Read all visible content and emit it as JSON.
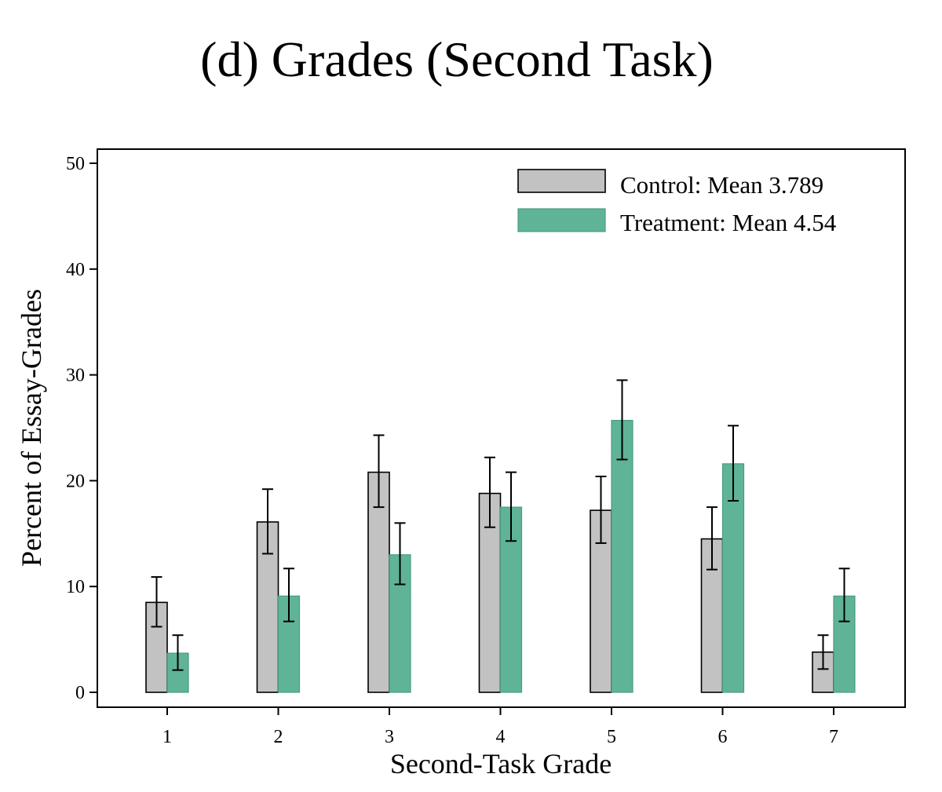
{
  "colors": {
    "control": "#c2c2c2",
    "treatment": "#5fb396",
    "treatment_edge": "#4a9e80",
    "axis": "#000000"
  },
  "chart_data": {
    "type": "bar",
    "title": "(d) Grades (Second Task)",
    "xlabel": "Second-Task Grade",
    "ylabel": "Percent of Essay-Grades",
    "categories": [
      "1",
      "2",
      "3",
      "4",
      "5",
      "6",
      "7"
    ],
    "yticks": [
      0,
      10,
      20,
      30,
      40,
      50
    ],
    "ylim": [
      -1.5,
      51.5
    ],
    "grid": false,
    "legend_position": "top-right",
    "series": [
      {
        "name": "Control: Mean 3.789",
        "values": [
          8.5,
          16.1,
          20.8,
          18.8,
          17.2,
          14.5,
          3.8
        ],
        "ci_low": [
          6.2,
          13.1,
          17.5,
          15.6,
          14.1,
          11.6,
          2.2
        ],
        "ci_high": [
          10.9,
          19.2,
          24.3,
          22.2,
          20.4,
          17.5,
          5.4
        ]
      },
      {
        "name": "Treatment: Mean 4.54",
        "values": [
          3.7,
          9.1,
          13.0,
          17.5,
          25.7,
          21.6,
          9.1
        ],
        "ci_low": [
          2.1,
          6.7,
          10.2,
          14.3,
          22.0,
          18.1,
          6.7
        ],
        "ci_high": [
          5.4,
          11.7,
          16.0,
          20.8,
          29.5,
          25.2,
          11.7
        ]
      }
    ]
  }
}
